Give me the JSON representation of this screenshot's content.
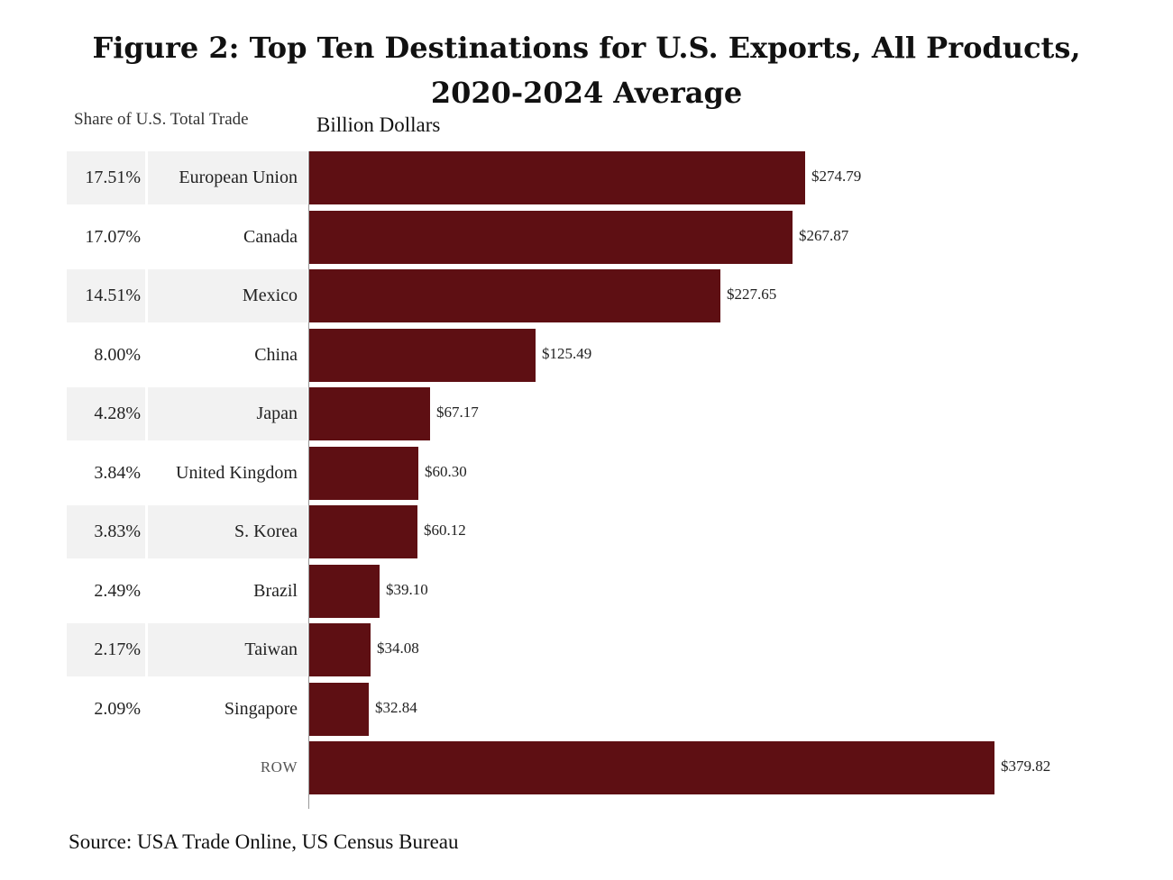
{
  "chart_data": {
    "type": "bar",
    "orientation": "horizontal",
    "title_line1": "Figure 2: Top Ten Destinations for U.S. Exports, All Products,",
    "title_line2": "2020-2024 Average",
    "share_header": "Share of U.S. Total Trade",
    "value_axis_label": "Billion Dollars",
    "source": "Source: USA Trade Online, US Census Bureau",
    "bar_color": "#5e0f13",
    "categories": [
      "European Union",
      "Canada",
      "Mexico",
      "China",
      "Japan",
      "United Kingdom",
      "S. Korea",
      "Brazil",
      "Taiwan",
      "Singapore",
      "ROW"
    ],
    "shares": [
      "17.51%",
      "17.07%",
      "14.51%",
      "8.00%",
      "4.28%",
      "3.84%",
      "3.83%",
      "2.49%",
      "2.17%",
      "2.09%",
      ""
    ],
    "values": [
      274.79,
      267.87,
      227.65,
      125.49,
      67.17,
      60.3,
      60.12,
      39.1,
      34.08,
      32.84,
      379.82
    ],
    "value_labels": [
      "$274.79",
      "$267.87",
      "$227.65",
      "$125.49",
      "$67.17",
      "$60.30",
      "$60.12",
      "$39.10",
      "$34.08",
      "$32.84",
      "$379.82"
    ],
    "xlim": [
      0,
      379.82
    ]
  }
}
